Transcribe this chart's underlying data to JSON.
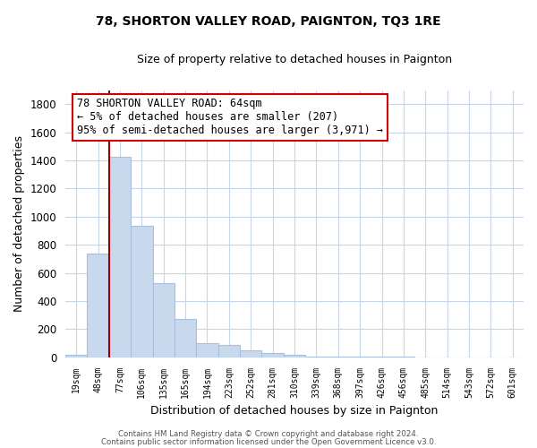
{
  "title": "78, SHORTON VALLEY ROAD, PAIGNTON, TQ3 1RE",
  "subtitle": "Size of property relative to detached houses in Paignton",
  "xlabel": "Distribution of detached houses by size in Paignton",
  "ylabel": "Number of detached properties",
  "bar_color": "#c8d9ee",
  "bar_edge_color": "#a8c0de",
  "categories": [
    "19sqm",
    "48sqm",
    "77sqm",
    "106sqm",
    "135sqm",
    "165sqm",
    "194sqm",
    "223sqm",
    "252sqm",
    "281sqm",
    "310sqm",
    "339sqm",
    "368sqm",
    "397sqm",
    "426sqm",
    "456sqm",
    "485sqm",
    "514sqm",
    "543sqm",
    "572sqm",
    "601sqm"
  ],
  "values": [
    18,
    735,
    1425,
    935,
    530,
    270,
    100,
    90,
    50,
    30,
    20,
    5,
    5,
    2,
    2,
    2,
    1,
    1,
    1,
    1,
    1
  ],
  "ylim": [
    0,
    1900
  ],
  "yticks": [
    0,
    200,
    400,
    600,
    800,
    1000,
    1200,
    1400,
    1600,
    1800
  ],
  "marker_color": "#990000",
  "annotation_line1": "78 SHORTON VALLEY ROAD: 64sqm",
  "annotation_line2": "← 5% of detached houses are smaller (207)",
  "annotation_line3": "95% of semi-detached houses are larger (3,971) →",
  "annotation_box_color": "#ffffff",
  "annotation_box_edge": "#cc0000",
  "footer_line1": "Contains HM Land Registry data © Crown copyright and database right 2024.",
  "footer_line2": "Contains public sector information licensed under the Open Government Licence v3.0.",
  "background_color": "#ffffff",
  "grid_color": "#c8d4e8"
}
